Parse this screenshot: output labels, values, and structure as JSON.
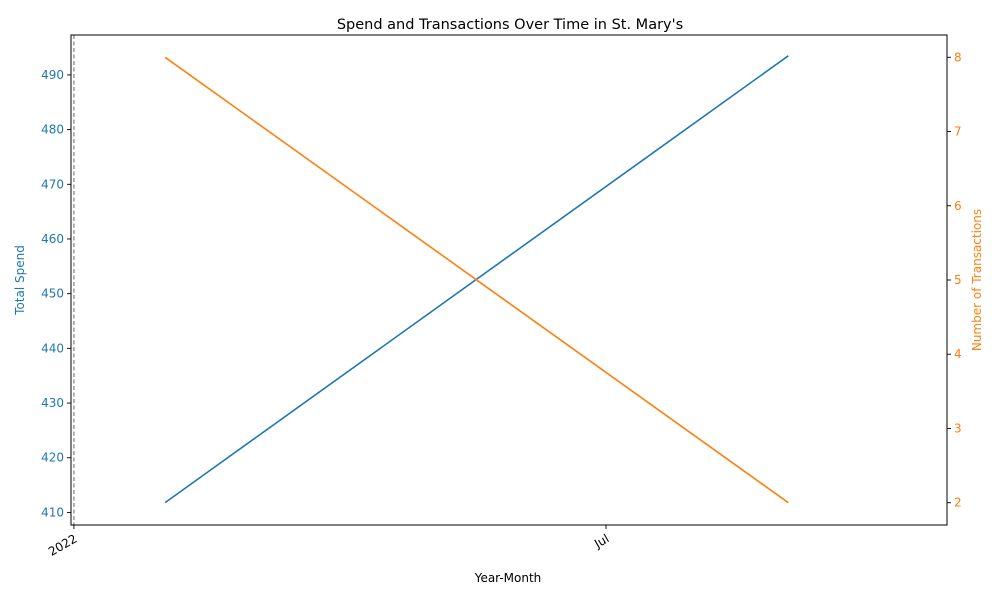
{
  "chart_data": {
    "type": "line",
    "title": "Spend and Transactions Over Time in St. Mary's",
    "xlabel": "Year-Month",
    "x": [
      "2022-02",
      "2022-09"
    ],
    "x_range": [
      "2021-12-31",
      "2022-10-25"
    ],
    "x_ticks": [
      {
        "date": "2022-01-01",
        "label": "2022"
      },
      {
        "date": "2022-07-01",
        "label": "Jul"
      }
    ],
    "vline_date": "2022-01-01",
    "series": [
      {
        "name": "Total Spend",
        "axis": "left",
        "values": [
          411.8,
          493.5
        ],
        "color": "#1f77b4"
      },
      {
        "name": "Number of Transactions",
        "axis": "right",
        "values": [
          8,
          2
        ],
        "color": "#ff7f0e"
      }
    ],
    "y_left": {
      "label": "Total Spend",
      "ylim": [
        407.7,
        497.3
      ],
      "ticks": [
        410,
        420,
        430,
        440,
        450,
        460,
        470,
        480,
        490
      ],
      "color": "#1f77b4"
    },
    "y_right": {
      "label": "Number of Transactions",
      "ylim": [
        1.7,
        8.3
      ],
      "ticks": [
        2,
        3,
        4,
        5,
        6,
        7,
        8
      ],
      "color": "#ff7f0e"
    },
    "grid": false,
    "legend": "none"
  }
}
